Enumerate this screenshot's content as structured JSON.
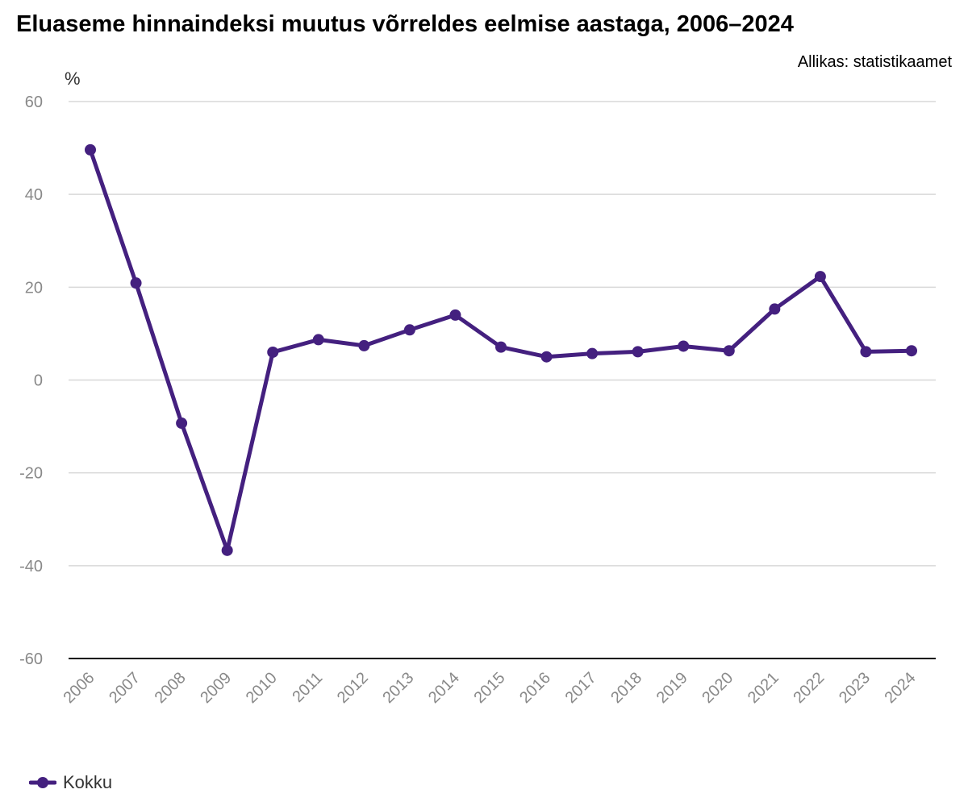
{
  "chart_data": {
    "type": "line",
    "title": "Eluaseme hinnaindeksi muutus võrreldes eelmise aastaga, 2006–2024",
    "source": "Allikas: statistikaamet",
    "ylabel": "%",
    "xlabel": "",
    "ylim": [
      -60,
      60
    ],
    "yticks": [
      60,
      40,
      20,
      0,
      -20,
      -40,
      -60
    ],
    "ytick_labels": [
      "60",
      "40",
      "20",
      "0",
      "-20",
      "-40",
      "-60"
    ],
    "categories": [
      "2006",
      "2007",
      "2008",
      "2009",
      "2010",
      "2011",
      "2012",
      "2013",
      "2014",
      "2015",
      "2016",
      "2017",
      "2018",
      "2019",
      "2020",
      "2021",
      "2022",
      "2023",
      "2024"
    ],
    "series": [
      {
        "name": "Kokku",
        "color": "#44207f",
        "values": [
          49.6,
          20.9,
          -9.3,
          -36.7,
          6.0,
          8.7,
          7.4,
          10.8,
          14.0,
          7.1,
          5.0,
          5.7,
          6.1,
          7.3,
          6.3,
          15.3,
          22.3,
          6.1,
          6.3
        ]
      }
    ],
    "grid": true,
    "legend_position": "bottom-left",
    "colors": {
      "grid": "#d8d8d8",
      "baseline": "#000000",
      "tick_text": "#898989"
    }
  }
}
